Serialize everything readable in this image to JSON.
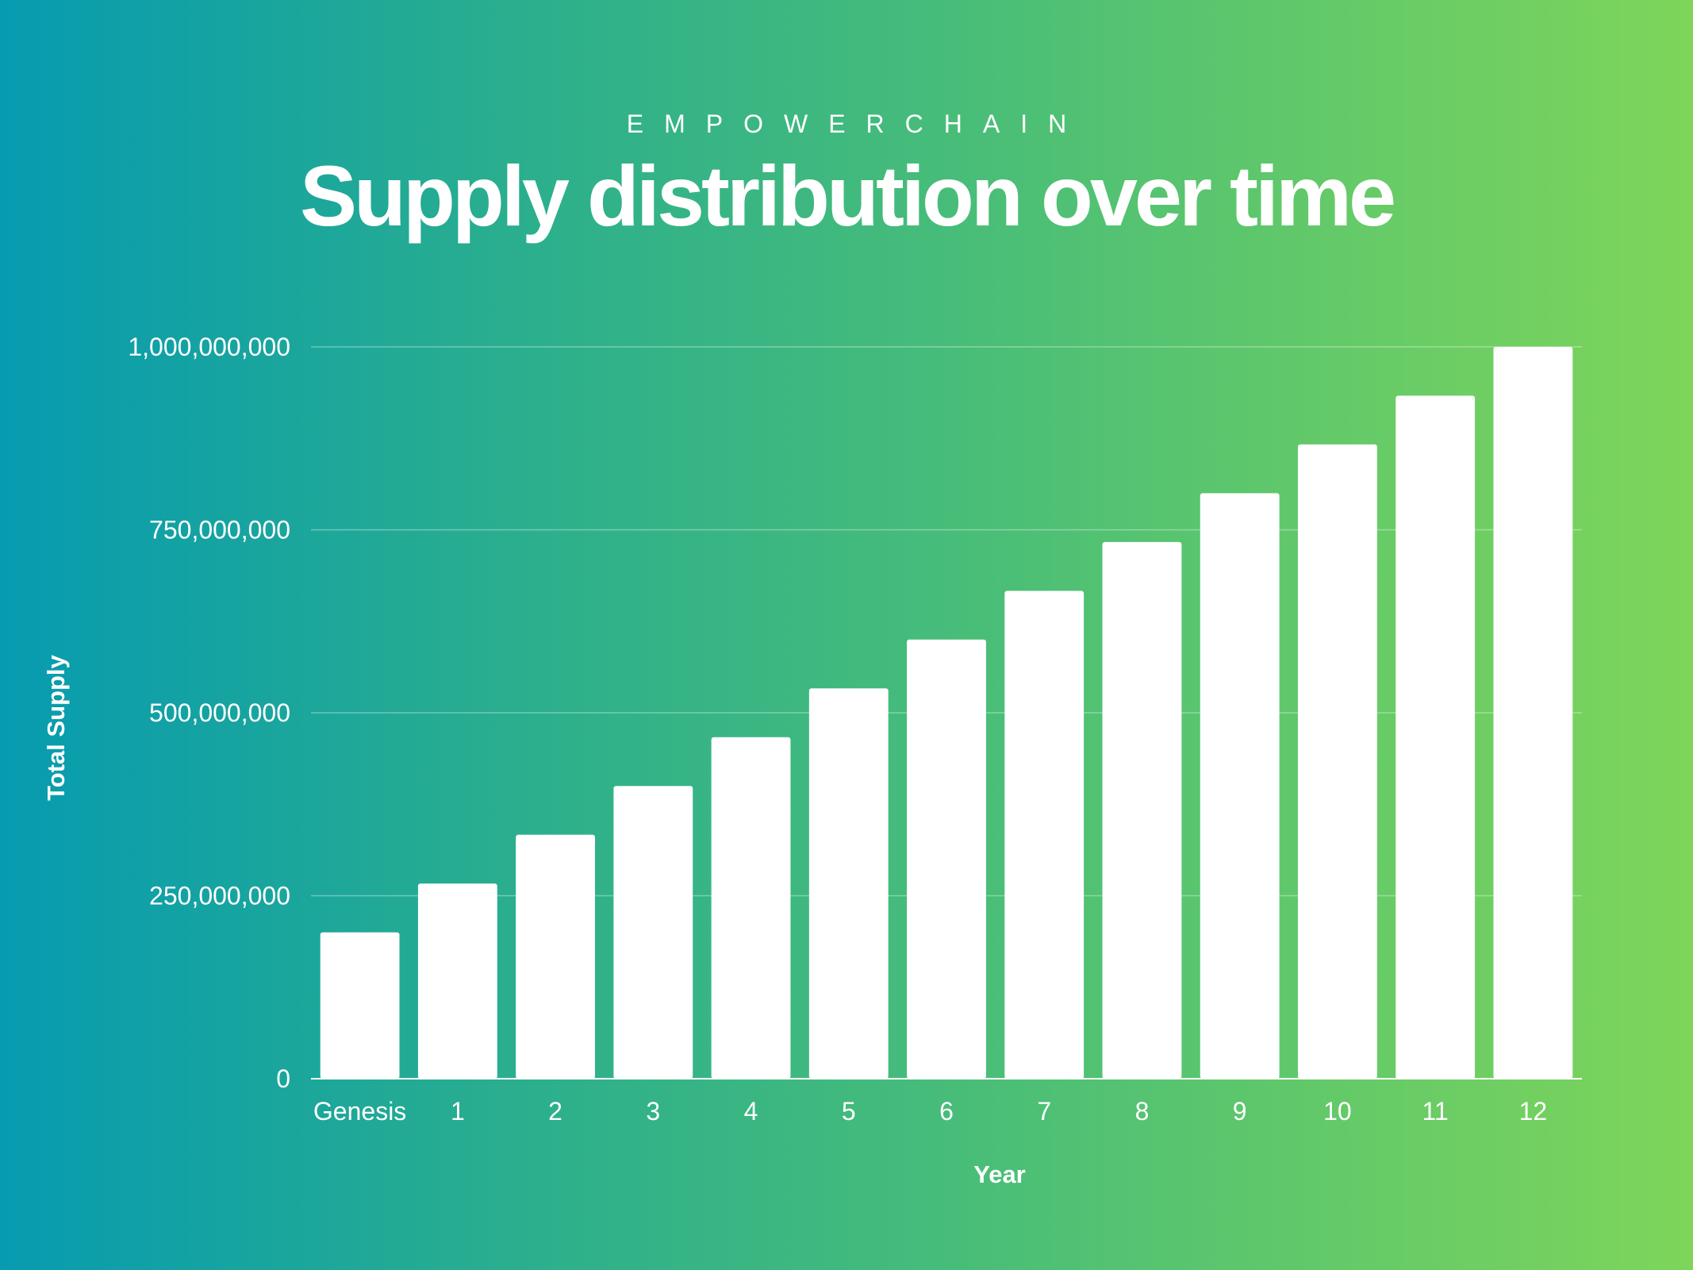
{
  "header": {
    "brand": "EMPOWERCHAIN",
    "title": "Supply distribution over time"
  },
  "colors": {
    "bar": "#ffffff",
    "gridline": "rgba(255,255,255,0.35)",
    "background_start": "#069bb0",
    "background_end": "#7ed55a"
  },
  "chart_data": {
    "type": "bar",
    "xlabel": "Year",
    "ylabel": "Total Supply",
    "categories": [
      "Genesis",
      "1",
      "2",
      "3",
      "4",
      "5",
      "6",
      "7",
      "8",
      "9",
      "10",
      "11",
      "12"
    ],
    "values": [
      200000000,
      266666667,
      333333333,
      400000000,
      466666667,
      533333333,
      600000000,
      666666667,
      733333333,
      800000000,
      866666667,
      933333333,
      1000000000
    ],
    "ylim": [
      0,
      1000000000
    ],
    "yticks": [
      0,
      250000000,
      500000000,
      750000000,
      1000000000
    ],
    "ytick_labels": [
      "0",
      "250,000,000",
      "500,000,000",
      "750,000,000",
      "1,000,000,000"
    ],
    "grid": true,
    "legend": "none"
  }
}
